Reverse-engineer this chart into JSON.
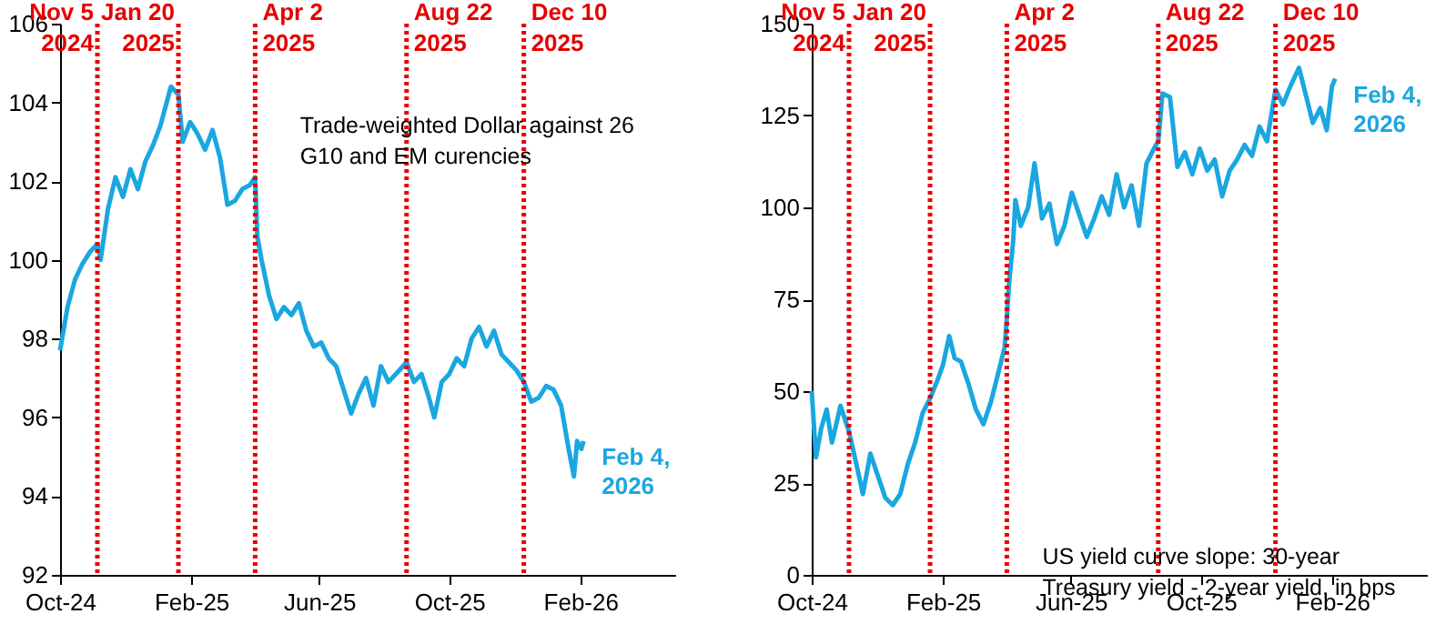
{
  "chart_data": [
    {
      "type": "line",
      "xlim": [
        "2024-10-01",
        "2026-05-01"
      ],
      "xticks": [
        {
          "value": "2024-10-01",
          "label": "Oct-24"
        },
        {
          "value": "2025-02-01",
          "label": "Feb-25"
        },
        {
          "value": "2025-06-01",
          "label": "Jun-25"
        },
        {
          "value": "2025-10-01",
          "label": "Oct-25"
        },
        {
          "value": "2026-02-01",
          "label": "Feb-26"
        }
      ],
      "ylim": [
        92,
        106
      ],
      "yticks": [
        92,
        94,
        96,
        98,
        100,
        102,
        104,
        106
      ],
      "grid": false,
      "marker": "none",
      "line_style": "solid",
      "series": [
        {
          "color": "#1aa7e0",
          "x": [
            "2024-10-01",
            "2024-10-08",
            "2024-10-15",
            "2024-10-22",
            "2024-10-29",
            "2024-11-05",
            "2024-11-08",
            "2024-11-15",
            "2024-11-22",
            "2024-11-29",
            "2024-12-06",
            "2024-12-13",
            "2024-12-20",
            "2024-12-27",
            "2025-01-03",
            "2025-01-10",
            "2025-01-13",
            "2025-01-20",
            "2025-01-24",
            "2025-01-31",
            "2025-02-07",
            "2025-02-14",
            "2025-02-21",
            "2025-02-28",
            "2025-03-07",
            "2025-03-14",
            "2025-03-21",
            "2025-03-28",
            "2025-04-02",
            "2025-04-04",
            "2025-04-08",
            "2025-04-15",
            "2025-04-22",
            "2025-04-29",
            "2025-05-06",
            "2025-05-13",
            "2025-05-20",
            "2025-05-27",
            "2025-06-03",
            "2025-06-10",
            "2025-06-17",
            "2025-06-24",
            "2025-07-01",
            "2025-07-08",
            "2025-07-15",
            "2025-07-22",
            "2025-07-29",
            "2025-08-05",
            "2025-08-12",
            "2025-08-22",
            "2025-08-29",
            "2025-09-05",
            "2025-09-12",
            "2025-09-17",
            "2025-09-24",
            "2025-10-01",
            "2025-10-08",
            "2025-10-15",
            "2025-10-22",
            "2025-10-29",
            "2025-11-05",
            "2025-11-12",
            "2025-11-19",
            "2025-11-26",
            "2025-12-03",
            "2025-12-10",
            "2025-12-17",
            "2025-12-24",
            "2025-12-31",
            "2026-01-07",
            "2026-01-14",
            "2026-01-21",
            "2026-01-26",
            "2026-01-29",
            "2026-02-02",
            "2026-02-04"
          ],
          "values": [
            97.7,
            98.8,
            99.5,
            99.9,
            100.2,
            100.4,
            100.0,
            101.3,
            102.1,
            101.6,
            102.3,
            101.8,
            102.5,
            102.9,
            103.4,
            104.1,
            104.4,
            104.2,
            103.0,
            103.5,
            103.2,
            102.8,
            103.3,
            102.6,
            101.4,
            101.5,
            101.8,
            101.9,
            102.1,
            100.6,
            100.0,
            99.1,
            98.5,
            98.8,
            98.6,
            98.9,
            98.2,
            97.8,
            97.9,
            97.5,
            97.3,
            96.7,
            96.1,
            96.6,
            97.0,
            96.3,
            97.3,
            96.9,
            97.1,
            97.4,
            96.9,
            97.1,
            96.5,
            96.0,
            96.9,
            97.1,
            97.5,
            97.3,
            98.0,
            98.3,
            97.8,
            98.2,
            97.6,
            97.4,
            97.2,
            96.9,
            96.4,
            96.5,
            96.8,
            96.7,
            96.3,
            95.2,
            94.5,
            95.4,
            95.2,
            95.4
          ]
        }
      ],
      "ref_lines": [
        {
          "axis": "x",
          "value": "2024-11-05",
          "label": "Nov 5\n2024",
          "color": "#e60000",
          "line_style": "dotted"
        },
        {
          "axis": "x",
          "value": "2025-01-20",
          "label": "Jan 20\n2025",
          "color": "#e60000",
          "line_style": "dotted"
        },
        {
          "axis": "x",
          "value": "2025-04-02",
          "label": "Apr 2\n2025",
          "color": "#e60000",
          "line_style": "dotted"
        },
        {
          "axis": "x",
          "value": "2025-08-22",
          "label": "Aug 22\n2025",
          "color": "#e60000",
          "line_style": "dotted"
        },
        {
          "axis": "x",
          "value": "2025-12-10",
          "label": "Dec 10\n2025",
          "color": "#e60000",
          "line_style": "dotted"
        }
      ],
      "annotations": [
        {
          "text": "Feb 4,\n2026",
          "x": "2026-02-04",
          "y": 95.4
        },
        "Trade-weighted Dollar against 26\nG10 and EM curencies"
      ]
    },
    {
      "type": "line",
      "xlim": [
        "2024-10-01",
        "2026-05-01"
      ],
      "xticks": [
        {
          "value": "2024-10-01",
          "label": "Oct-24"
        },
        {
          "value": "2025-02-01",
          "label": "Feb-25"
        },
        {
          "value": "2025-06-01",
          "label": "Jun-25"
        },
        {
          "value": "2025-10-01",
          "label": "Oct-25"
        },
        {
          "value": "2026-02-01",
          "label": "Feb-26"
        }
      ],
      "ylim": [
        0,
        150
      ],
      "yticks": [
        0,
        25,
        50,
        75,
        100,
        125,
        150
      ],
      "grid": false,
      "marker": "none",
      "line_style": "solid",
      "series": [
        {
          "color": "#1aa7e0",
          "x": [
            "2024-10-01",
            "2024-10-05",
            "2024-10-10",
            "2024-10-15",
            "2024-10-20",
            "2024-10-28",
            "2024-11-05",
            "2024-11-12",
            "2024-11-18",
            "2024-11-25",
            "2024-12-02",
            "2024-12-09",
            "2024-12-16",
            "2024-12-23",
            "2024-12-30",
            "2025-01-06",
            "2025-01-13",
            "2025-01-20",
            "2025-01-27",
            "2025-02-01",
            "2025-02-07",
            "2025-02-12",
            "2025-02-18",
            "2025-02-25",
            "2025-03-04",
            "2025-03-11",
            "2025-03-18",
            "2025-03-25",
            "2025-03-31",
            "2025-04-02",
            "2025-04-04",
            "2025-04-08",
            "2025-04-10",
            "2025-04-15",
            "2025-04-22",
            "2025-04-28",
            "2025-05-05",
            "2025-05-12",
            "2025-05-19",
            "2025-05-26",
            "2025-06-02",
            "2025-06-09",
            "2025-06-16",
            "2025-06-23",
            "2025-06-30",
            "2025-07-07",
            "2025-07-14",
            "2025-07-21",
            "2025-07-28",
            "2025-08-04",
            "2025-08-11",
            "2025-08-18",
            "2025-08-22",
            "2025-08-26",
            "2025-09-02",
            "2025-09-09",
            "2025-09-16",
            "2025-09-23",
            "2025-09-30",
            "2025-10-07",
            "2025-10-14",
            "2025-10-21",
            "2025-10-28",
            "2025-11-04",
            "2025-11-11",
            "2025-11-18",
            "2025-11-25",
            "2025-12-02",
            "2025-12-10",
            "2025-12-17",
            "2025-12-24",
            "2026-01-01",
            "2026-01-08",
            "2026-01-14",
            "2026-01-21",
            "2026-01-27",
            "2026-02-01",
            "2026-02-04"
          ],
          "values": [
            50,
            32,
            40,
            45,
            36,
            46,
            39,
            30,
            22,
            33,
            27,
            21,
            19,
            22,
            30,
            36,
            44,
            48,
            53,
            57,
            65,
            59,
            58,
            52,
            45,
            41,
            47,
            55,
            62,
            70,
            79,
            91,
            102,
            95,
            100,
            112,
            97,
            101,
            90,
            95,
            104,
            98,
            92,
            97,
            103,
            98,
            109,
            100,
            106,
            95,
            112,
            116,
            118,
            131,
            130,
            111,
            115,
            109,
            116,
            110,
            113,
            103,
            110,
            113,
            117,
            114,
            122,
            118,
            132,
            128,
            133,
            138,
            130,
            123,
            127,
            121,
            133,
            135
          ]
        }
      ],
      "ref_lines": [
        {
          "axis": "x",
          "value": "2024-11-05",
          "label": "Nov 5\n2024",
          "color": "#e60000",
          "line_style": "dotted"
        },
        {
          "axis": "x",
          "value": "2025-01-20",
          "label": "Jan 20\n2025",
          "color": "#e60000",
          "line_style": "dotted"
        },
        {
          "axis": "x",
          "value": "2025-04-02",
          "label": "Apr 2\n2025",
          "color": "#e60000",
          "line_style": "dotted"
        },
        {
          "axis": "x",
          "value": "2025-08-22",
          "label": "Aug 22\n2025",
          "color": "#e60000",
          "line_style": "dotted"
        },
        {
          "axis": "x",
          "value": "2025-12-10",
          "label": "Dec 10\n2025",
          "color": "#e60000",
          "line_style": "dotted"
        }
      ],
      "annotations": [
        {
          "text": "Feb 4,\n2026",
          "x": "2026-02-04",
          "y": 135
        },
        "US yield curve slope: 30-year\nTreasury yield - 2-year yield, in bps"
      ]
    }
  ]
}
